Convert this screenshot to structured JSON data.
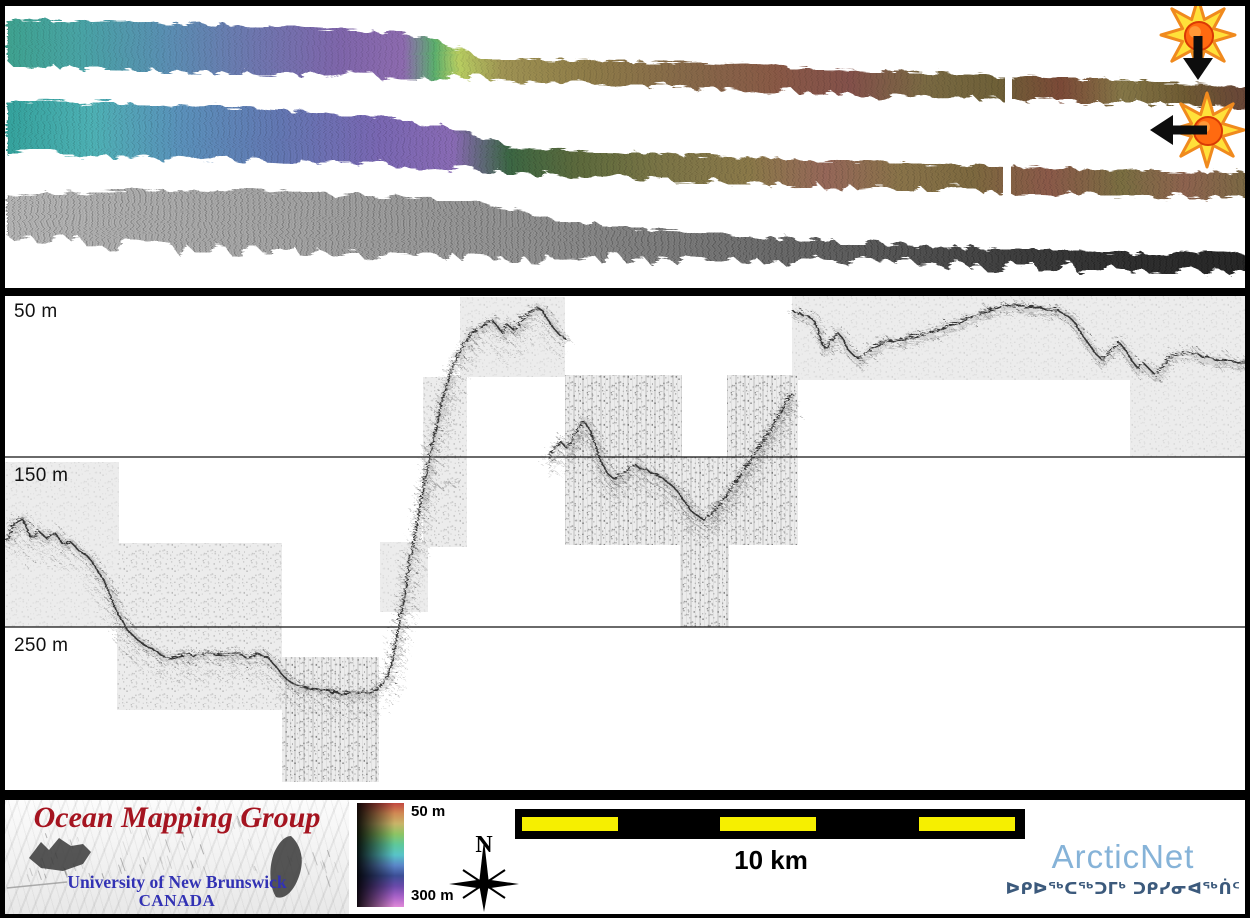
{
  "figure": {
    "bathymetry_panel": {
      "strips": [
        {
          "name": "multibeam-swath-shaded-south"
        },
        {
          "name": "multibeam-swath-shaded-west"
        },
        {
          "name": "backscatter-swath"
        }
      ],
      "sun_icons": [
        {
          "name": "sun-illumination-down-arrow"
        },
        {
          "name": "sun-illumination-left-arrow"
        }
      ]
    },
    "profile_panel": {
      "depth_labels": [
        "50 m",
        "150 m",
        "250 m"
      ]
    }
  },
  "legend": {
    "omg": {
      "title": "Ocean Mapping Group",
      "university": "University of New Brunswick",
      "country": "CANADA"
    },
    "colorbar": {
      "top_label": "50 m",
      "bottom_label": "300 m"
    },
    "north_label": "N",
    "scalebar_label": "10 km",
    "arcticnet": {
      "name": "ArcticNet",
      "inuktitut": "ᐅᑭᐅᖅᑕᖅᑐᒥᒃ ᑐᑭᓯᓂᐊᖅᑏᑦ"
    }
  },
  "colors": {
    "omg_red": "#a51420",
    "unb_blue": "#3232b4",
    "arcticnet_blue": "#86b3d8",
    "inuktitut_blue": "#3c5a7c",
    "scalebar_yellow": "#f6ef00",
    "sun_yellow": "#ffe13a",
    "sun_orange": "#f08a1e",
    "sun_core": "#ff6a10",
    "depth_colormap_top_to_bottom": [
      "#c24840",
      "#d08a54",
      "#c8b468",
      "#8cc464",
      "#5ec89a",
      "#58c4c8",
      "#5a86c8",
      "#3c4e96",
      "#6a4aaa",
      "#a862c8",
      "#e08ad8"
    ]
  }
}
